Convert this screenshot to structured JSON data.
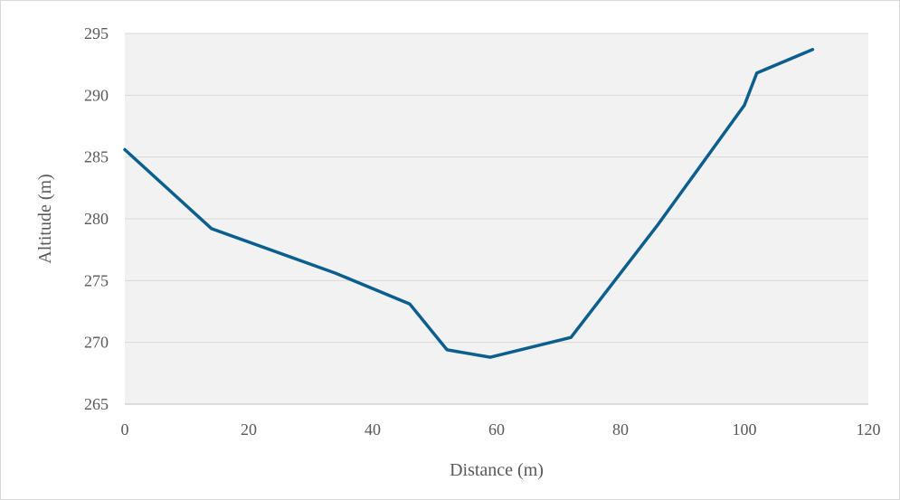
{
  "chart_data": {
    "type": "line",
    "title": "",
    "xlabel": "Distance (m)",
    "ylabel": "Altitude (m)",
    "xlim": [
      0,
      120
    ],
    "ylim": [
      265,
      295
    ],
    "x_ticks": [
      0,
      20,
      40,
      60,
      80,
      100,
      120
    ],
    "y_ticks": [
      265,
      270,
      275,
      280,
      285,
      290,
      295
    ],
    "grid": "horizontal",
    "legend": "none",
    "colors": {
      "line": "#0b5f8f",
      "plot_bg": "#f2f2f2",
      "grid": "#d9d9d9"
    },
    "series": [
      {
        "x": [
          0,
          14,
          34,
          46,
          52,
          59,
          72,
          86,
          100,
          102,
          111
        ],
        "y": [
          285.6,
          279.2,
          275.6,
          273.1,
          269.4,
          268.8,
          270.4,
          279.5,
          289.2,
          291.8,
          293.7
        ]
      }
    ]
  }
}
